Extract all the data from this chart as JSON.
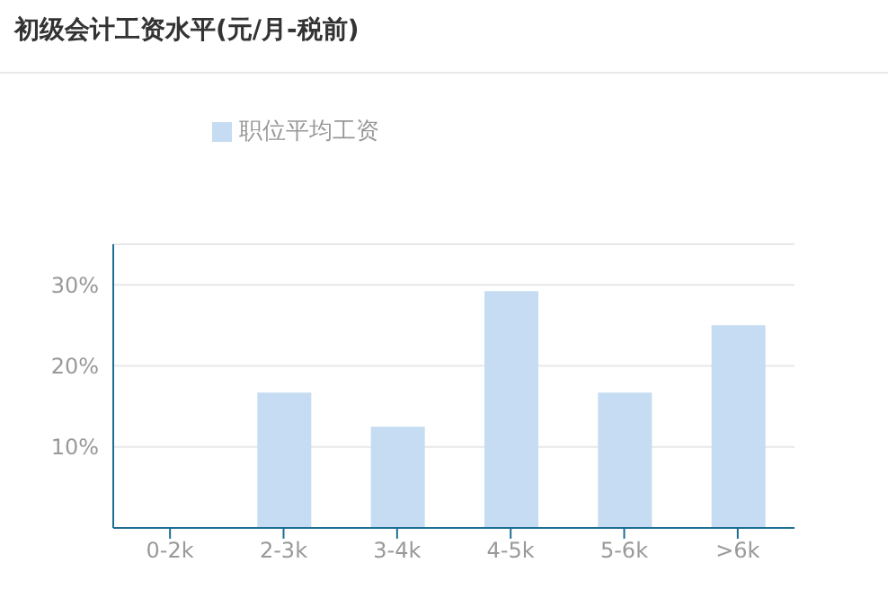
{
  "chart_data": {
    "type": "bar",
    "title": "初级会计工资水平(元/月-税前)",
    "categories": [
      "0-2k",
      "2-3k",
      "3-4k",
      "4-5k",
      "5-6k",
      ">6k"
    ],
    "series": [
      {
        "name": "职位平均工资",
        "color": "#c5dcf2",
        "values": [
          0,
          16.7,
          12.5,
          29.2,
          16.7,
          25
        ]
      }
    ],
    "ylim": [
      0,
      35
    ],
    "yticks": [
      {
        "value": 10,
        "label": "10%"
      },
      {
        "value": 20,
        "label": "20%"
      },
      {
        "value": 30,
        "label": "30%"
      }
    ],
    "grid": "y",
    "legend": "top"
  }
}
